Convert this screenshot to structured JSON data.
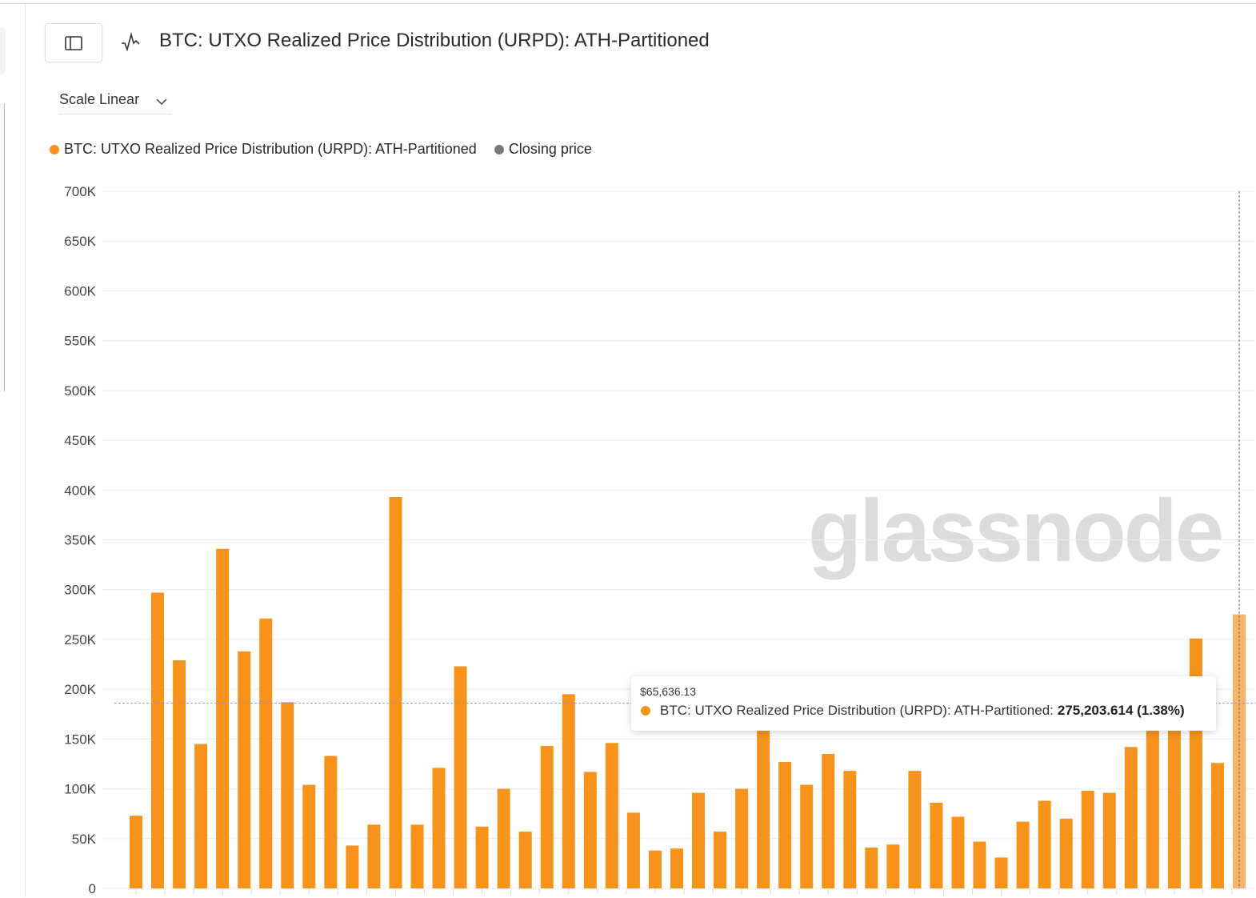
{
  "header": {
    "title": "BTC: UTXO Realized Price Distribution (URPD): ATH-Partitioned",
    "sidebar_toggle_icon": "sidebar-panel-icon",
    "metric_icon": "pulse-icon"
  },
  "controls": {
    "scale_label": "Scale Linear"
  },
  "legend": [
    {
      "label": "BTC: UTXO Realized Price Distribution (URPD): ATH-Partitioned",
      "color": "#f7931a"
    },
    {
      "label": "Closing price",
      "color": "#777777"
    }
  ],
  "watermark": "glassnode",
  "tooltip": {
    "price": "$65,636.13",
    "series": "BTC: UTXO Realized Price Distribution (URPD): ATH-Partitioned:",
    "value": "275,203.614 (1.38%)"
  },
  "chart_data": {
    "type": "bar",
    "ylim": [
      0,
      700000
    ],
    "yticks": [
      "0",
      "50K",
      "100K",
      "150K",
      "200K",
      "250K",
      "300K",
      "350K",
      "400K",
      "450K",
      "500K",
      "550K",
      "600K",
      "650K",
      "700K"
    ],
    "grid": true,
    "legend_position": "top-left",
    "bar_color": "#f7931a",
    "highlight_color": "#f9b46a",
    "series": [
      {
        "name": "BTC: UTXO Realized Price Distribution (URPD): ATH-Partitioned",
        "values": [
          73000,
          297000,
          229000,
          145000,
          341000,
          238000,
          271000,
          187000,
          104000,
          133000,
          43000,
          64000,
          393000,
          64000,
          121000,
          223000,
          62000,
          100000,
          57000,
          143000,
          195000,
          117000,
          146000,
          76000,
          38000,
          40000,
          96000,
          57000,
          100000,
          165000,
          127000,
          104000,
          135000,
          118000,
          41000,
          44000,
          118000,
          86000,
          72000,
          47000,
          31000,
          67000,
          88000,
          70000,
          98000,
          96000,
          142000,
          170000,
          175000,
          251000,
          126000,
          275203.614
        ]
      }
    ],
    "highlighted_index": 51,
    "crosshair_value": 186000
  }
}
